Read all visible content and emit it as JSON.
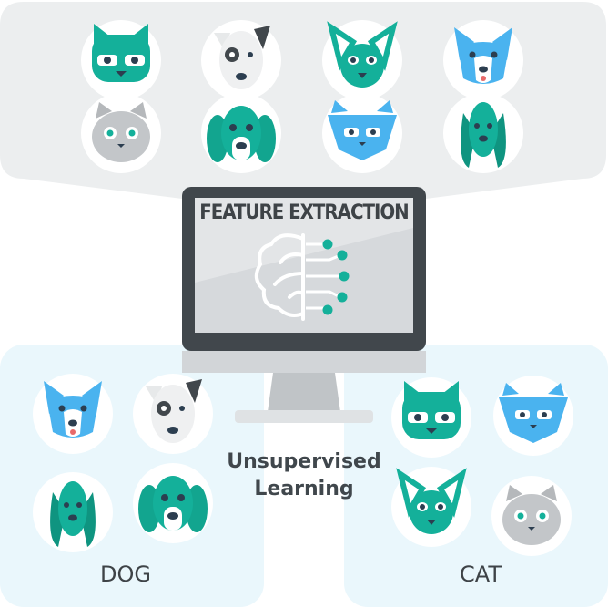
{
  "screen_title": "FEATURE EXTRACTION",
  "center_text": {
    "line1": "Unsupervised",
    "line2": "Learning"
  },
  "groups": {
    "dog": "DOG",
    "cat": "CAT"
  },
  "colors": {
    "top_panel": "#eceeef",
    "side_panel": "#eaf7fc",
    "teal": "#14b09a",
    "blue": "#4ab3ef",
    "gray": "#b5b8bb",
    "dark": "#41474c"
  }
}
